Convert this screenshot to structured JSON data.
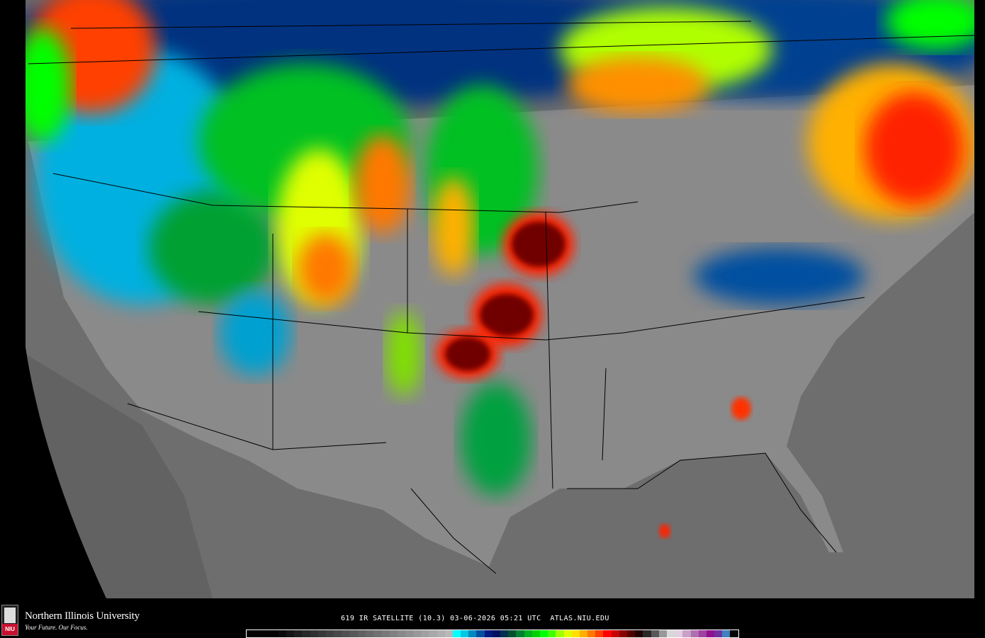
{
  "map": {
    "land_color": "#8a8a8a",
    "ocean_color": "#6e6e6e",
    "background_color": "#000000",
    "border_color": "#000000"
  },
  "footer": {
    "logo_text": "NIU",
    "university_name": "Northern Illinois University",
    "tagline": "Your Future. Our Focus.",
    "caption": "619 IR SATELLITE (10.3) 03-06-2026 05:21 UTC  ATLAS.NIU.EDU"
  },
  "colorbar": {
    "colors": [
      "#000000",
      "#000000",
      "#000000",
      "#000000",
      "#0a0a0a",
      "#141414",
      "#1e1e1e",
      "#282828",
      "#303030",
      "#383838",
      "#404040",
      "#484848",
      "#505050",
      "#585858",
      "#606060",
      "#686868",
      "#707070",
      "#787878",
      "#808080",
      "#888888",
      "#909090",
      "#989898",
      "#a0a0a0",
      "#a8a8a8",
      "#b0b0b0",
      "#b8b8b8",
      "#00ffff",
      "#00c8e0",
      "#0088c0",
      "#0050a0",
      "#001880",
      "#001060",
      "#003050",
      "#005030",
      "#008030",
      "#00b020",
      "#00d000",
      "#00ff00",
      "#40ff00",
      "#a0ff00",
      "#e0ff00",
      "#ffe000",
      "#ffb000",
      "#ff7800",
      "#ff4000",
      "#ff0000",
      "#c80000",
      "#880000",
      "#500000",
      "#200000",
      "#282828",
      "#585858",
      "#989898",
      "#d8d8d8",
      "#e0d0e0",
      "#c8a0c8",
      "#b070b0",
      "#a040a0",
      "#901090",
      "#7030a0",
      "#4080c0",
      "#000000"
    ]
  }
}
